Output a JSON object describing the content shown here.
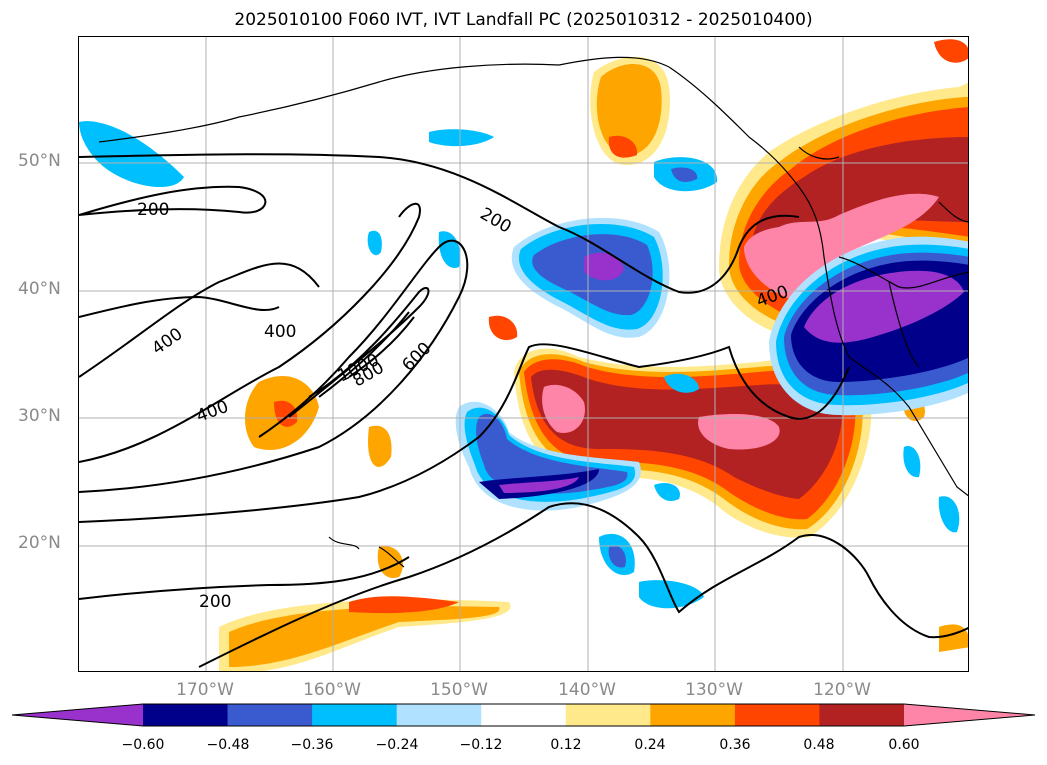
{
  "title": "2025010100 F060 IVT, IVT Landfall PC (2025010312 - 2025010400)",
  "map": {
    "lat_labels": [
      "50°N",
      "40°N",
      "30°N",
      "20°N"
    ],
    "lon_labels": [
      "170°W",
      "160°W",
      "150°W",
      "140°W",
      "130°W",
      "120°W"
    ],
    "contour_labels": [
      "200",
      "200",
      "200",
      "400",
      "400",
      "400",
      "400",
      "600",
      "800",
      "1000"
    ],
    "contour_color": "#000000",
    "gridline_color": "#b0b0b0"
  },
  "colorbar": {
    "ticks": [
      "−0.60",
      "−0.48",
      "−0.36",
      "−0.24",
      "−0.12",
      "0.12",
      "0.24",
      "0.36",
      "0.48",
      "0.60"
    ],
    "colors": [
      "#9932cc",
      "#00008b",
      "#3a5bd0",
      "#00bfff",
      "#b0e2ff",
      "#ffffff",
      "#ffe98a",
      "#ffa500",
      "#ff4500",
      "#b22222",
      "#ff85a8"
    ]
  }
}
